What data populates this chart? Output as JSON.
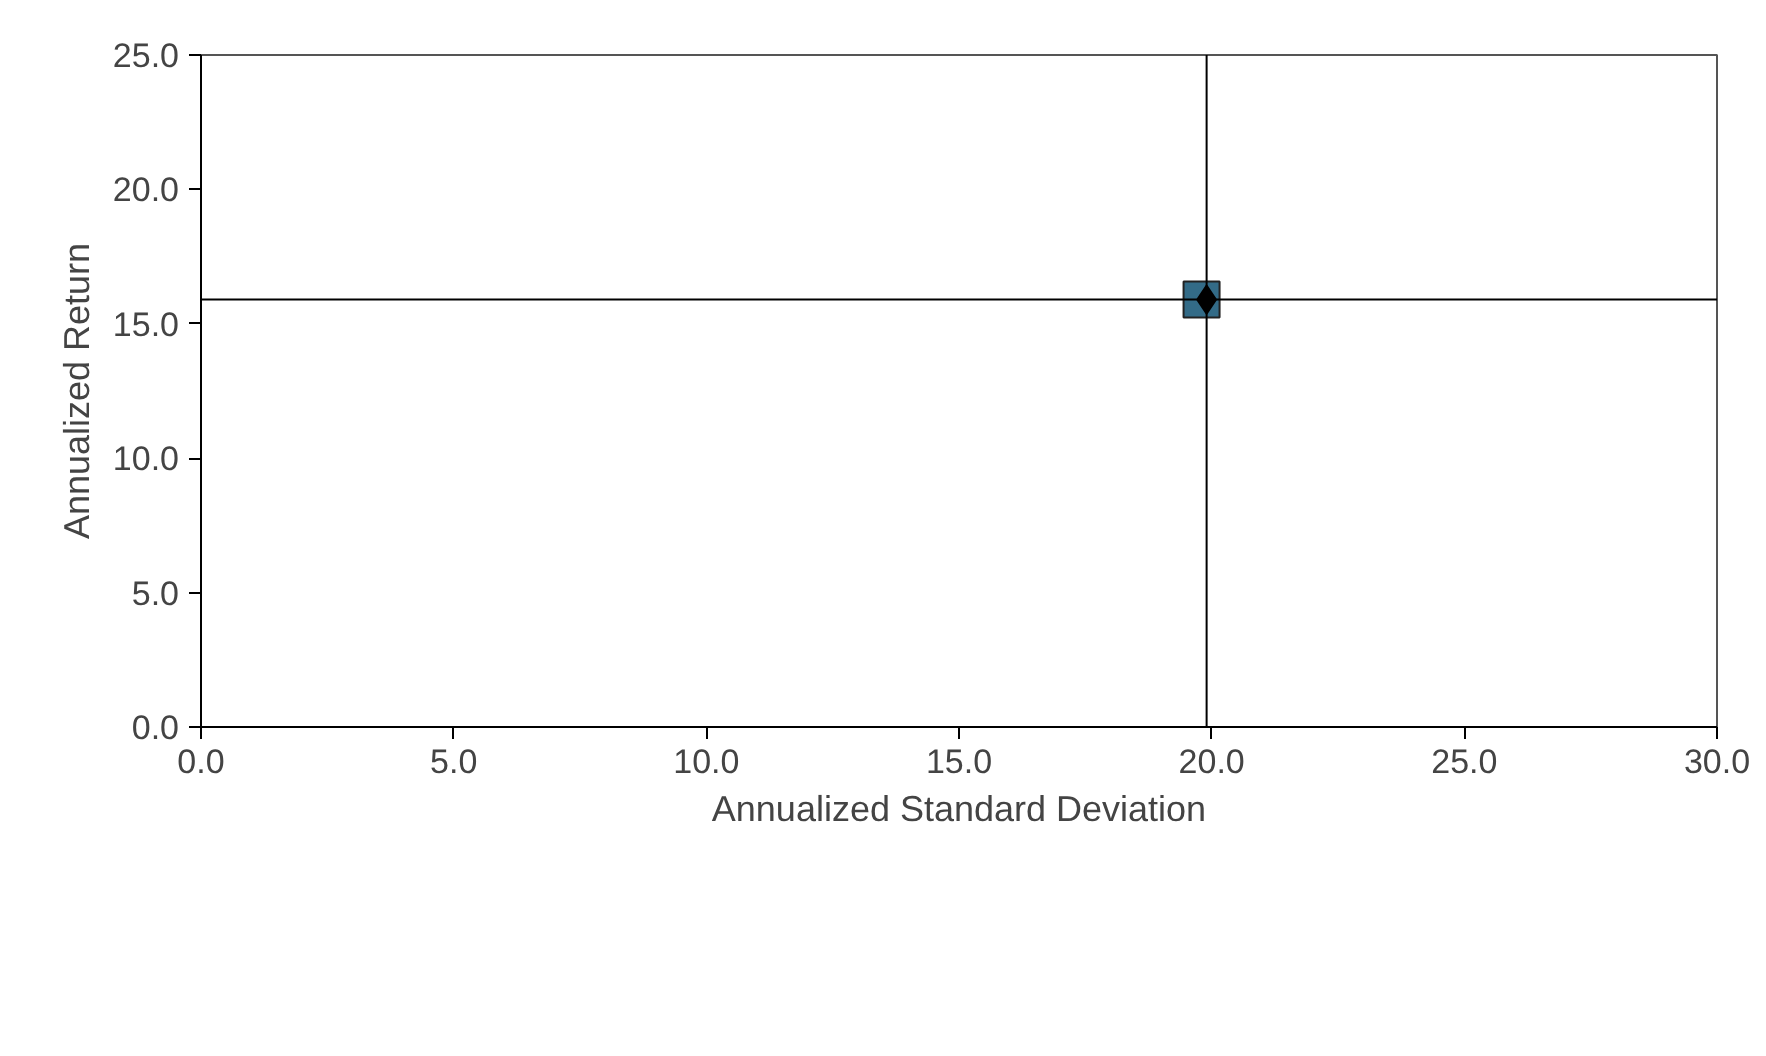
{
  "chart_data": {
    "type": "scatter",
    "xlabel": "Annualized Standard Deviation",
    "ylabel": "Annualized Return",
    "xlim": [
      0,
      30
    ],
    "xticks": [
      {
        "value": 0,
        "label": "0.0"
      },
      {
        "value": 5,
        "label": "5.0"
      },
      {
        "value": 10,
        "label": "10.0"
      },
      {
        "value": 15,
        "label": "15.0"
      },
      {
        "value": 20,
        "label": "20.0"
      },
      {
        "value": 25,
        "label": "25.0"
      },
      {
        "value": 30,
        "label": "30.0"
      }
    ],
    "ylim": [
      0,
      25
    ],
    "yticks": [
      {
        "value": 0,
        "label": "0.0"
      },
      {
        "value": 5,
        "label": "5.0"
      },
      {
        "value": 10,
        "label": "10.0"
      },
      {
        "value": 15,
        "label": "15.0"
      },
      {
        "value": 20,
        "label": "20.0"
      },
      {
        "value": 25,
        "label": "25.0"
      }
    ],
    "series": [
      {
        "color": "#336b87",
        "marker": "square",
        "x": [
          19.8
        ],
        "values": [
          15.9
        ]
      },
      {
        "color": "#000000",
        "marker": "diamond",
        "x": [
          19.9
        ],
        "values": [
          15.9
        ]
      }
    ],
    "ref_lines": [
      {
        "axis": "x",
        "value": 19.9,
        "label": null,
        "color": "#000000"
      },
      {
        "axis": "y",
        "value": 15.9,
        "label": null,
        "color": "#000000"
      }
    ],
    "grid": false
  }
}
